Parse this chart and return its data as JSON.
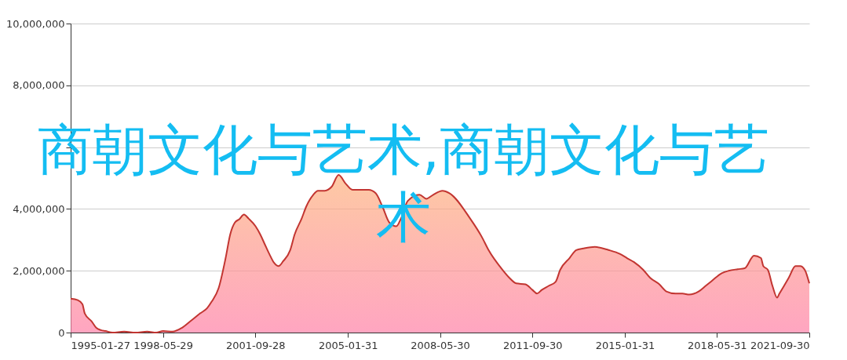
{
  "chart_data": {
    "type": "area",
    "title": "商朝文化与艺术,商朝文化与艺术",
    "x": [
      "1995-01-27",
      "1995-05",
      "1995-07",
      "1995-08",
      "1995-11",
      "1996-01",
      "1996-03",
      "1996-05",
      "1996-08",
      "1997-01",
      "1997-06",
      "1997-11",
      "1998-03",
      "1998-06",
      "1998-10",
      "1999-02",
      "1999-06",
      "1999-10",
      "2000-01",
      "2000-03",
      "2000-06",
      "2000-09",
      "2000-11",
      "2001-01",
      "2001-03",
      "2001-05",
      "2001-07",
      "2001-10",
      "2001-12",
      "2002-02",
      "2002-04",
      "2002-06",
      "2002-08",
      "2002-10",
      "2003-01",
      "2003-03",
      "2003-06",
      "2003-08",
      "2003-11",
      "2004-01",
      "2004-04",
      "2004-07",
      "2004-10",
      "2005-01",
      "2005-04",
      "2005-11",
      "2006-02",
      "2006-05",
      "2006-08",
      "2006-11",
      "2007-01",
      "2007-04",
      "2007-09",
      "2007-12",
      "2008-03",
      "2008-07",
      "2008-10",
      "2009-07",
      "2009-12",
      "2010-03",
      "2010-09",
      "2010-12",
      "2011-03",
      "2011-07",
      "2011-10",
      "2011-12",
      "2012-02",
      "2012-05",
      "2012-08",
      "2012-10",
      "2013-02",
      "2013-05",
      "2013-08",
      "2014-01",
      "2014-07",
      "2014-12",
      "2015-03",
      "2015-06",
      "2015-10",
      "2016-01",
      "2016-05",
      "2016-08",
      "2016-12",
      "2017-03",
      "2017-06",
      "2017-10",
      "2018-01",
      "2018-04",
      "2018-08",
      "2018-11",
      "2019-03",
      "2019-06",
      "2019-10",
      "2020-01",
      "2020-02",
      "2020-04",
      "2020-06",
      "2020-08",
      "2020-09",
      "2021-01",
      "2021-04",
      "2021-06",
      "2021-08",
      "2021-09-30"
    ],
    "series": [
      {
        "color": "#c23531",
        "values": [
          1100000,
          1050000,
          920000,
          620000,
          360000,
          150000,
          80000,
          50000,
          0,
          30000,
          0,
          30000,
          0,
          50000,
          30000,
          150000,
          380000,
          620000,
          790000,
          1000000,
          1440000,
          2410000,
          3180000,
          3560000,
          3670000,
          3820000,
          3690000,
          3440000,
          3180000,
          2850000,
          2540000,
          2260000,
          2150000,
          2310000,
          2670000,
          3180000,
          3690000,
          4080000,
          4460000,
          4590000,
          4590000,
          4720000,
          5100000,
          4820000,
          4620000,
          4620000,
          4510000,
          4080000,
          3560000,
          3440000,
          3690000,
          4260000,
          4460000,
          4330000,
          4460000,
          4590000,
          4510000,
          3690000,
          3100000,
          2670000,
          2030000,
          1770000,
          1590000,
          1560000,
          1380000,
          1260000,
          1380000,
          1510000,
          1640000,
          2030000,
          2410000,
          2670000,
          2720000,
          2770000,
          2670000,
          2540000,
          2410000,
          2280000,
          2030000,
          1770000,
          1560000,
          1330000,
          1260000,
          1260000,
          1230000,
          1330000,
          1510000,
          1690000,
          1920000,
          2000000,
          2050000,
          2080000,
          2490000,
          2410000,
          2150000,
          2030000,
          1510000,
          1130000,
          1260000,
          1770000,
          2150000,
          2150000,
          2030000,
          1590000
        ]
      }
    ],
    "xlim": [
      "1995-01-27",
      "2021-09-30"
    ],
    "xticks": [
      "1995-01-27",
      "1998-05-29",
      "2001-09-28",
      "2005-01-31",
      "2008-05-30",
      "2011-09-30",
      "2015-01-31",
      "2018-05-31",
      "2021-09-30"
    ],
    "ylim": [
      0,
      10000000
    ],
    "yticks": [
      0,
      {
        "value": 2000000,
        "label": "2,000,000"
      },
      {
        "value": 4000000,
        "label": "4,000,000"
      },
      {
        "value": 6000000,
        "label": null
      },
      {
        "value": 8000000,
        "label": "8,000,000"
      },
      {
        "value": 10000000,
        "label": "10,000,000"
      }
    ],
    "grid": "y"
  }
}
